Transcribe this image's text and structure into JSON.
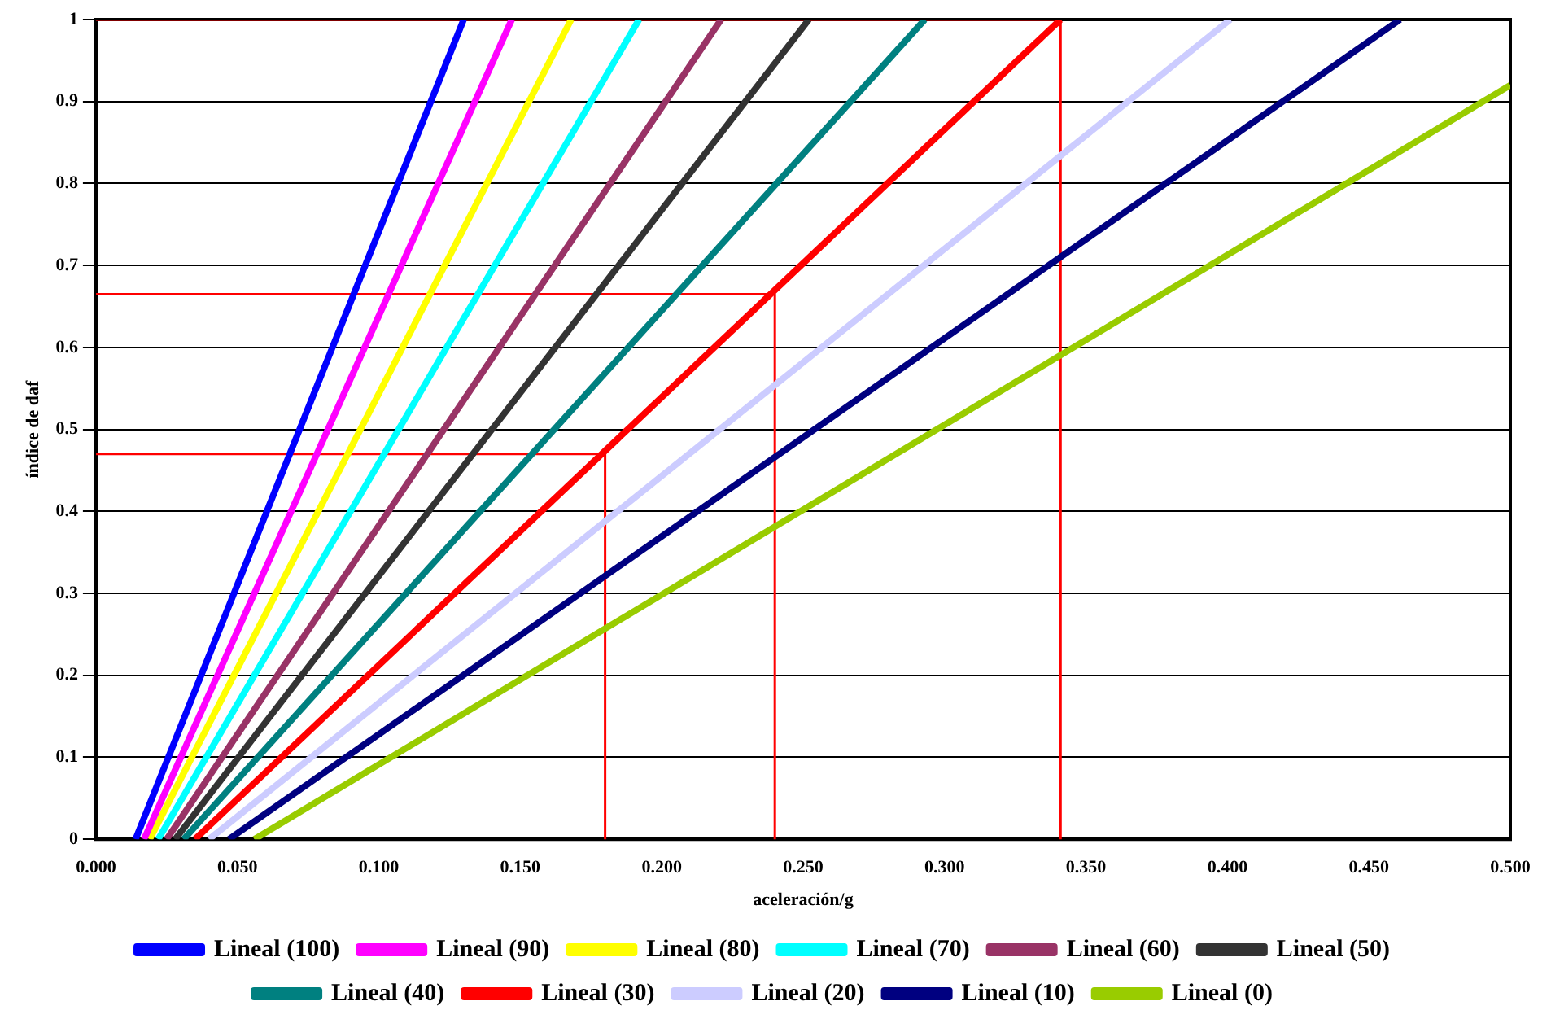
{
  "chart_data": {
    "type": "line",
    "xlabel": "aceleración/g",
    "ylabel": "índice de daf",
    "xlim": [
      0,
      0.5
    ],
    "ylim": [
      0,
      1
    ],
    "xticks": [
      {
        "value": 0,
        "label": "0.000"
      },
      {
        "value": 0.05,
        "label": "0.050"
      },
      {
        "value": 0.1,
        "label": "0.100"
      },
      {
        "value": 0.15,
        "label": "0.150"
      },
      {
        "value": 0.2,
        "label": "0.200"
      },
      {
        "value": 0.25,
        "label": "0.250"
      },
      {
        "value": 0.3,
        "label": "0.300"
      },
      {
        "value": 0.35,
        "label": "0.350"
      },
      {
        "value": 0.4,
        "label": "0.400"
      },
      {
        "value": 0.45,
        "label": "0.450"
      },
      {
        "value": 0.5,
        "label": "0.500"
      }
    ],
    "yticks": [
      0,
      0.1,
      0.2,
      0.3,
      0.4,
      0.5,
      0.6,
      0.7,
      0.8,
      0.9,
      1
    ],
    "grid": "y",
    "legend": "bottom",
    "marker": "none",
    "line_style": "solid",
    "series": [
      {
        "name": "Lineal (100)",
        "color": "#0000ff",
        "x": [
          0.014,
          0.13
        ],
        "values": [
          0,
          1
        ]
      },
      {
        "name": "Lineal (90)",
        "color": "#ff00ff",
        "x": [
          0.017,
          0.147
        ],
        "values": [
          0,
          1
        ]
      },
      {
        "name": "Lineal (80)",
        "color": "#ffff00",
        "x": [
          0.019,
          0.168
        ],
        "values": [
          0,
          1
        ]
      },
      {
        "name": "Lineal (70)",
        "color": "#00ffff",
        "x": [
          0.022,
          0.192
        ],
        "values": [
          0,
          1
        ]
      },
      {
        "name": "Lineal (60)",
        "color": "#993366",
        "x": [
          0.025,
          0.221
        ],
        "values": [
          0,
          1
        ]
      },
      {
        "name": "Lineal (50)",
        "color": "#333333",
        "x": [
          0.028,
          0.252
        ],
        "values": [
          0,
          1
        ]
      },
      {
        "name": "Lineal (40)",
        "color": "#008080",
        "x": [
          0.031,
          0.293
        ],
        "values": [
          0,
          1
        ]
      },
      {
        "name": "Lineal (30)",
        "color": "#ff0000",
        "x": [
          0.035,
          0.341
        ],
        "values": [
          0,
          1
        ]
      },
      {
        "name": "Lineal (20)",
        "color": "#ccccff",
        "x": [
          0.04,
          0.401
        ],
        "values": [
          0,
          1
        ]
      },
      {
        "name": "Lineal (10)",
        "color": "#000080",
        "x": [
          0.047,
          0.461
        ],
        "values": [
          0,
          1
        ]
      },
      {
        "name": "Lineal (0)",
        "color": "#99cc00",
        "x": [
          0.056,
          0.5
        ],
        "values": [
          0,
          0.92
        ]
      },
      {
        "color": "#ff0000",
        "x": [
          0,
          0.18,
          0.18
        ],
        "values": [
          0.47,
          0.47,
          0
        ]
      },
      {
        "color": "#ff0000",
        "x": [
          0,
          0.24,
          0.24
        ],
        "values": [
          0.665,
          0.665,
          0
        ]
      },
      {
        "color": "#ff0000",
        "x": [
          0,
          0.341,
          0.341
        ],
        "values": [
          1,
          1,
          0
        ]
      }
    ]
  }
}
